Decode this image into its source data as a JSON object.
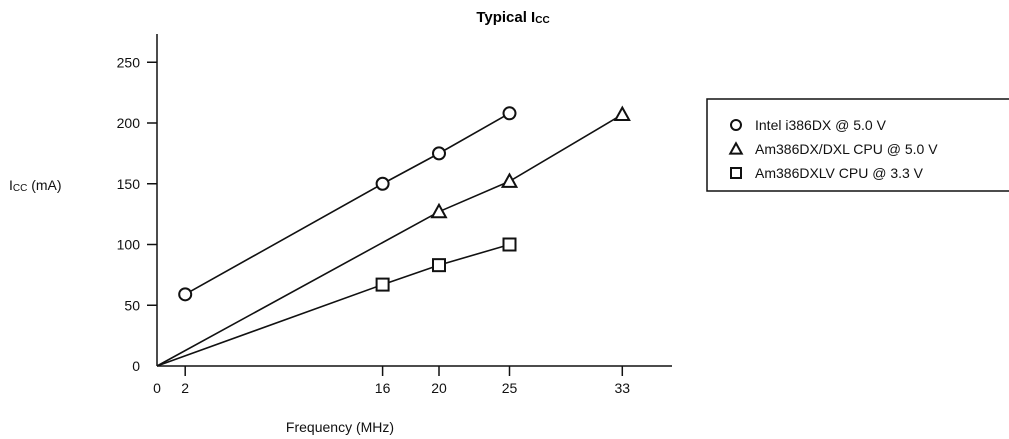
{
  "chart_data": {
    "type": "line",
    "title": "Typical I",
    "title_sub": "CC",
    "xlabel": "Frequency (MHz)",
    "ylabel": "I",
    "ylabel_sub": "CC",
    "ylabel_unit": " (mA)",
    "x_ticks": [
      0,
      2,
      16,
      20,
      25,
      33
    ],
    "y_ticks": [
      0,
      50,
      100,
      150,
      200,
      250
    ],
    "xlim": [
      0,
      35
    ],
    "ylim": [
      0,
      260
    ],
    "grid": false,
    "legend_position": "right",
    "series": [
      {
        "name": "Intel i386DX @ 5.0 V",
        "marker": "circle",
        "points": [
          [
            2,
            59
          ],
          [
            16,
            150
          ],
          [
            20,
            175
          ],
          [
            25,
            208
          ]
        ],
        "line": [
          [
            2,
            59
          ],
          [
            16,
            150
          ],
          [
            20,
            175
          ],
          [
            25,
            208
          ]
        ]
      },
      {
        "name": "Am386DX/DXL CPU @ 5.0 V",
        "marker": "triangle",
        "points": [
          [
            20,
            127
          ],
          [
            25,
            152
          ],
          [
            33,
            207
          ]
        ],
        "line": [
          [
            0,
            0
          ],
          [
            20,
            127
          ],
          [
            25,
            152
          ],
          [
            33,
            207
          ]
        ]
      },
      {
        "name": "Am386DXLV CPU @ 3.3 V",
        "marker": "square",
        "points": [
          [
            16,
            67
          ],
          [
            20,
            83
          ],
          [
            25,
            100
          ]
        ],
        "line": [
          [
            0,
            0
          ],
          [
            16,
            67
          ],
          [
            20,
            83
          ],
          [
            25,
            100
          ]
        ]
      }
    ]
  }
}
